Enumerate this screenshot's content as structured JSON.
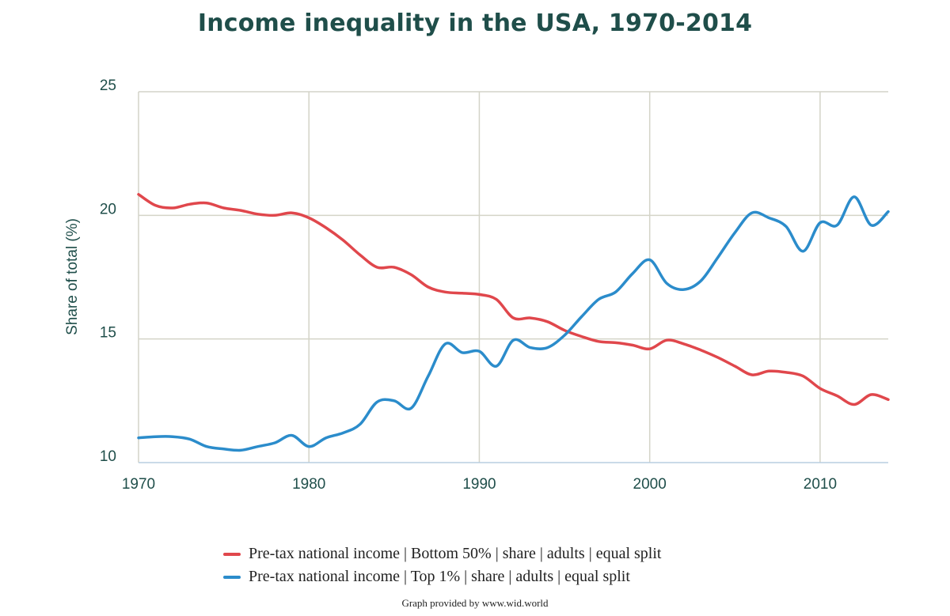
{
  "chart_data": {
    "type": "line",
    "title": "Income inequality in the USA, 1970-2014",
    "xlabel": "",
    "ylabel": "Share of total (%)",
    "xlim": [
      1970,
      2014
    ],
    "ylim": [
      10,
      25
    ],
    "x_ticks": [
      1970,
      1980,
      1990,
      2000,
      2010
    ],
    "y_ticks": [
      10,
      15,
      20,
      25
    ],
    "grid": true,
    "legend_position": "bottom",
    "x": [
      1970,
      1971,
      1972,
      1973,
      1974,
      1975,
      1976,
      1977,
      1978,
      1979,
      1980,
      1981,
      1982,
      1983,
      1984,
      1985,
      1986,
      1987,
      1988,
      1989,
      1990,
      1991,
      1992,
      1993,
      1994,
      1995,
      1996,
      1997,
      1998,
      1999,
      2000,
      2001,
      2002,
      2003,
      2004,
      2005,
      2006,
      2007,
      2008,
      2009,
      2010,
      2011,
      2012,
      2013,
      2014
    ],
    "series": [
      {
        "name": "Pre-tax national income | Bottom 50% | share | adults | equal split",
        "color": "#e0474c",
        "values": [
          20.85,
          20.4,
          20.3,
          20.45,
          20.5,
          20.3,
          20.2,
          20.05,
          20.0,
          20.1,
          19.9,
          19.5,
          19.0,
          18.4,
          17.9,
          17.9,
          17.6,
          17.1,
          16.9,
          16.85,
          16.8,
          16.6,
          15.85,
          15.85,
          15.7,
          15.35,
          15.1,
          14.9,
          14.85,
          14.75,
          14.6,
          14.95,
          14.8,
          14.55,
          14.25,
          13.9,
          13.55,
          13.7,
          13.65,
          13.5,
          13.0,
          12.7,
          12.35,
          12.75,
          12.55
        ]
      },
      {
        "name": "Pre-tax national income | Top 1% | share | adults | equal split",
        "color": "#2b8ccb",
        "values": [
          11.0,
          11.05,
          11.05,
          10.95,
          10.65,
          10.55,
          10.5,
          10.65,
          10.8,
          11.1,
          10.65,
          11.0,
          11.2,
          11.55,
          12.45,
          12.5,
          12.2,
          13.5,
          14.8,
          14.45,
          14.5,
          13.9,
          14.95,
          14.65,
          14.65,
          15.15,
          15.9,
          16.6,
          16.9,
          17.65,
          18.2,
          17.25,
          17.0,
          17.35,
          18.3,
          19.3,
          20.1,
          19.9,
          19.55,
          18.55,
          19.7,
          19.6,
          20.75,
          19.6,
          20.15
        ]
      }
    ],
    "credit": "Graph provided by www.wid.world"
  }
}
